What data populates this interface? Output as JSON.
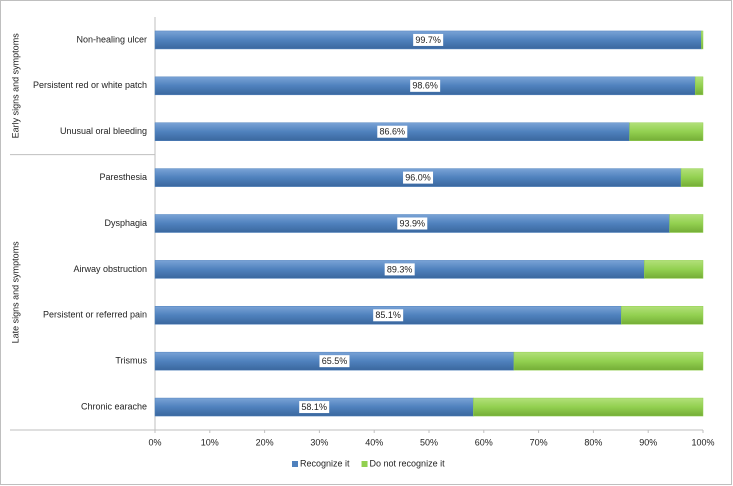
{
  "chart_data": {
    "type": "stacked_barh",
    "categories": [
      "Non-healing ulcer",
      "Persistent red or white patch",
      "Unusual oral bleeding",
      "Paresthesia",
      "Dysphagia",
      "Airway obstruction",
      "Persistent or referred pain",
      "Trismus",
      "Chronic earache"
    ],
    "groups": [
      {
        "label": "Early signs and symptoms",
        "size": 3
      },
      {
        "label": "Late signs and symptoms",
        "size": 6
      }
    ],
    "series": [
      {
        "name": "Recognize it",
        "color": "#4f81bd",
        "values": [
          99.7,
          98.6,
          86.6,
          96.0,
          93.9,
          89.3,
          85.1,
          65.5,
          58.1
        ],
        "value_labels": [
          "99.7%",
          "98.6%",
          "86.6%",
          "96.0%",
          "93.9%",
          "89.3%",
          "85.1%",
          "65.5%",
          "58.1%"
        ]
      },
      {
        "name": "Do not recognize it",
        "color": "#92d050",
        "values": [
          0.3,
          1.4,
          13.4,
          4.0,
          6.1,
          10.7,
          14.9,
          34.5,
          41.9
        ]
      }
    ],
    "xlim": [
      0,
      100
    ],
    "xticks": [
      {
        "value": 0,
        "label": "0%"
      },
      {
        "value": 10,
        "label": "10%"
      },
      {
        "value": 20,
        "label": "20%"
      },
      {
        "value": 30,
        "label": "30%"
      },
      {
        "value": 40,
        "label": "40%"
      },
      {
        "value": 50,
        "label": "50%"
      },
      {
        "value": 60,
        "label": "60%"
      },
      {
        "value": 70,
        "label": "70%"
      },
      {
        "value": 80,
        "label": "80%"
      },
      {
        "value": 90,
        "label": "90%"
      },
      {
        "value": 100,
        "label": "100%"
      }
    ],
    "legend": "bottom"
  }
}
